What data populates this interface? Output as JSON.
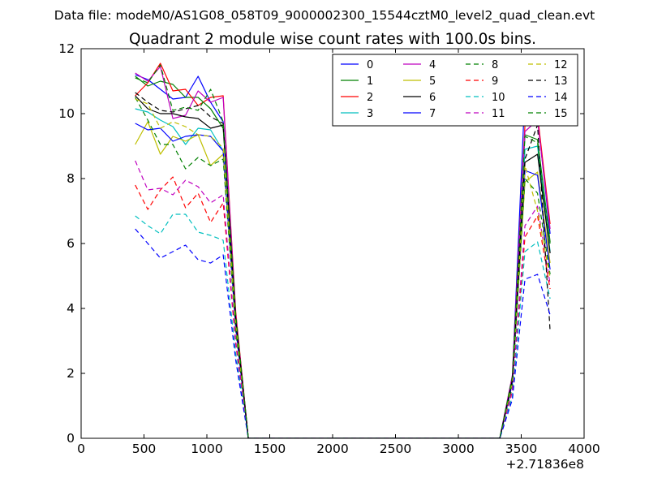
{
  "figure": {
    "suptitle": "Data file: modeM0/AS1G08_058T09_9000002300_15544cztM0_level2_quad_clean.evt"
  },
  "chart_data": {
    "type": "line",
    "title": "Quadrant 2 module wise count rates with 100.0s bins.",
    "xlabel": "",
    "ylabel": "",
    "xlim": [
      0,
      4000
    ],
    "ylim": [
      0,
      12
    ],
    "x_offset_label": "+2.71836e8",
    "xticks": [
      0,
      500,
      1000,
      1500,
      2000,
      2500,
      3000,
      3500,
      4000
    ],
    "yticks": [
      0,
      2,
      4,
      6,
      8,
      10,
      12
    ],
    "grid": false,
    "legend_position": "top-right",
    "legend_columns": 4,
    "x": [
      430,
      530,
      630,
      730,
      830,
      930,
      1030,
      1130,
      1230,
      1330,
      1430,
      1530,
      1630,
      1730,
      1830,
      1930,
      2030,
      2130,
      2230,
      2330,
      2430,
      2530,
      2630,
      2730,
      2830,
      2930,
      3030,
      3130,
      3230,
      3330,
      3430,
      3530,
      3630,
      3730
    ],
    "series": [
      {
        "name": "0",
        "color": "#0000ff",
        "dash": "solid",
        "values": [
          11.2,
          11.05,
          10.75,
          10.45,
          10.5,
          11.15,
          10.35,
          9.75,
          3.7,
          0,
          0,
          0,
          0,
          0,
          0,
          0,
          0,
          0,
          0,
          0,
          0,
          0,
          0,
          0,
          0,
          0,
          0,
          0,
          0,
          0,
          1.9,
          10.65,
          9.9,
          6.3
        ]
      },
      {
        "name": "1",
        "color": "#008000",
        "dash": "solid",
        "values": [
          11.15,
          10.85,
          11.0,
          10.9,
          10.5,
          10.5,
          10.15,
          9.55,
          3.8,
          0,
          0,
          0,
          0,
          0,
          0,
          0,
          0,
          0,
          0,
          0,
          0,
          0,
          0,
          0,
          0,
          0,
          0,
          0,
          0,
          0,
          1.9,
          9.35,
          9.2,
          6.05
        ]
      },
      {
        "name": "2",
        "color": "#ff0000",
        "dash": "solid",
        "values": [
          10.55,
          10.95,
          11.55,
          10.7,
          10.75,
          10.25,
          10.5,
          10.55,
          3.9,
          0,
          0,
          0,
          0,
          0,
          0,
          0,
          0,
          0,
          0,
          0,
          0,
          0,
          0,
          0,
          0,
          0,
          0,
          0,
          0,
          0,
          1.9,
          9.65,
          9.95,
          6.6
        ]
      },
      {
        "name": "3",
        "color": "#00bfbf",
        "dash": "solid",
        "values": [
          10.15,
          10.05,
          9.8,
          9.6,
          9.05,
          9.55,
          9.5,
          8.85,
          3.5,
          0,
          0,
          0,
          0,
          0,
          0,
          0,
          0,
          0,
          0,
          0,
          0,
          0,
          0,
          0,
          0,
          0,
          0,
          0,
          0,
          0,
          1.75,
          8.9,
          9.0,
          5.75
        ]
      },
      {
        "name": "4",
        "color": "#bf00bf",
        "dash": "solid",
        "values": [
          11.25,
          11.0,
          11.45,
          9.85,
          9.95,
          10.7,
          10.35,
          10.5,
          3.8,
          0,
          0,
          0,
          0,
          0,
          0,
          0,
          0,
          0,
          0,
          0,
          0,
          0,
          0,
          0,
          0,
          0,
          0,
          0,
          0,
          0,
          1.95,
          9.45,
          9.8,
          6.45
        ]
      },
      {
        "name": "5",
        "color": "#bfbf00",
        "dash": "solid",
        "values": [
          9.05,
          9.75,
          8.75,
          9.3,
          9.15,
          9.35,
          8.4,
          8.75,
          3.4,
          0,
          0,
          0,
          0,
          0,
          0,
          0,
          0,
          0,
          0,
          0,
          0,
          0,
          0,
          0,
          0,
          0,
          0,
          0,
          0,
          0,
          1.7,
          7.9,
          8.2,
          5.4
        ]
      },
      {
        "name": "6",
        "color": "#000000",
        "dash": "solid",
        "values": [
          10.55,
          10.15,
          10.0,
          10.0,
          9.9,
          9.85,
          9.55,
          9.65,
          3.6,
          0,
          0,
          0,
          0,
          0,
          0,
          0,
          0,
          0,
          0,
          0,
          0,
          0,
          0,
          0,
          0,
          0,
          0,
          0,
          0,
          0,
          1.8,
          8.5,
          8.75,
          5.7
        ]
      },
      {
        "name": "7",
        "color": "#0000ff",
        "dash": "solid",
        "values": [
          9.7,
          9.5,
          9.55,
          9.15,
          9.3,
          9.35,
          9.3,
          8.85,
          3.4,
          0,
          0,
          0,
          0,
          0,
          0,
          0,
          0,
          0,
          0,
          0,
          0,
          0,
          0,
          0,
          0,
          0,
          0,
          0,
          0,
          0,
          1.7,
          8.25,
          8.1,
          5.2
        ]
      },
      {
        "name": "8",
        "color": "#008000",
        "dash": "dashed",
        "values": [
          10.5,
          9.8,
          9.05,
          9.05,
          8.3,
          8.65,
          8.4,
          8.6,
          3.3,
          0,
          0,
          0,
          0,
          0,
          0,
          0,
          0,
          0,
          0,
          0,
          0,
          0,
          0,
          0,
          0,
          0,
          0,
          0,
          0,
          0,
          1.6,
          8.0,
          7.55,
          5.05
        ]
      },
      {
        "name": "9",
        "color": "#ff0000",
        "dash": "dashed",
        "values": [
          7.8,
          7.05,
          7.65,
          8.05,
          7.1,
          7.55,
          6.65,
          7.25,
          2.9,
          0,
          0,
          0,
          0,
          0,
          0,
          0,
          0,
          0,
          0,
          0,
          0,
          0,
          0,
          0,
          0,
          0,
          0,
          0,
          0,
          0,
          1.45,
          6.2,
          6.85,
          4.6
        ]
      },
      {
        "name": "10",
        "color": "#00bfbf",
        "dash": "dashed",
        "values": [
          6.85,
          6.55,
          6.3,
          6.9,
          6.9,
          6.35,
          6.25,
          6.1,
          2.6,
          0,
          0,
          0,
          0,
          0,
          0,
          0,
          0,
          0,
          0,
          0,
          0,
          0,
          0,
          0,
          0,
          0,
          0,
          0,
          0,
          0,
          1.3,
          5.75,
          6.05,
          4.3
        ]
      },
      {
        "name": "11",
        "color": "#bf00bf",
        "dash": "dashed",
        "values": [
          8.55,
          7.65,
          7.7,
          7.5,
          7.95,
          7.75,
          7.25,
          7.5,
          3.0,
          0,
          0,
          0,
          0,
          0,
          0,
          0,
          0,
          0,
          0,
          0,
          0,
          0,
          0,
          0,
          0,
          0,
          0,
          0,
          0,
          0,
          1.5,
          6.55,
          7.15,
          4.75
        ]
      },
      {
        "name": "12",
        "color": "#bfbf00",
        "dash": "dashed",
        "values": [
          10.45,
          10.3,
          9.55,
          9.75,
          9.6,
          9.35,
          9.3,
          8.95,
          3.5,
          0,
          0,
          0,
          0,
          0,
          0,
          0,
          0,
          0,
          0,
          0,
          0,
          0,
          0,
          0,
          0,
          0,
          0,
          0,
          0,
          0,
          1.75,
          8.4,
          7.0,
          4.95
        ]
      },
      {
        "name": "13",
        "color": "#000000",
        "dash": "dashed",
        "values": [
          10.65,
          10.35,
          10.1,
          10.05,
          10.15,
          10.25,
          9.9,
          9.7,
          3.65,
          0,
          0,
          0,
          0,
          0,
          0,
          0,
          0,
          0,
          0,
          0,
          0,
          0,
          0,
          0,
          0,
          0,
          0,
          0,
          0,
          0,
          1.8,
          8.6,
          9.65,
          3.3
        ]
      },
      {
        "name": "14",
        "color": "#0000ff",
        "dash": "dashed",
        "values": [
          6.45,
          6.0,
          5.55,
          5.75,
          5.95,
          5.5,
          5.4,
          5.65,
          2.4,
          0,
          0,
          0,
          0,
          0,
          0,
          0,
          0,
          0,
          0,
          0,
          0,
          0,
          0,
          0,
          0,
          0,
          0,
          0,
          0,
          0,
          1.2,
          4.9,
          5.05,
          3.8
        ]
      },
      {
        "name": "15",
        "color": "#008000",
        "dash": "dashed",
        "values": [
          11.1,
          10.95,
          11.5,
          10.1,
          10.2,
          10.1,
          10.75,
          9.75,
          3.8,
          0,
          0,
          0,
          0,
          0,
          0,
          0,
          0,
          0,
          0,
          0,
          0,
          0,
          0,
          0,
          0,
          0,
          0,
          0,
          0,
          0,
          1.9,
          9.3,
          9.1,
          6.0
        ]
      }
    ]
  }
}
